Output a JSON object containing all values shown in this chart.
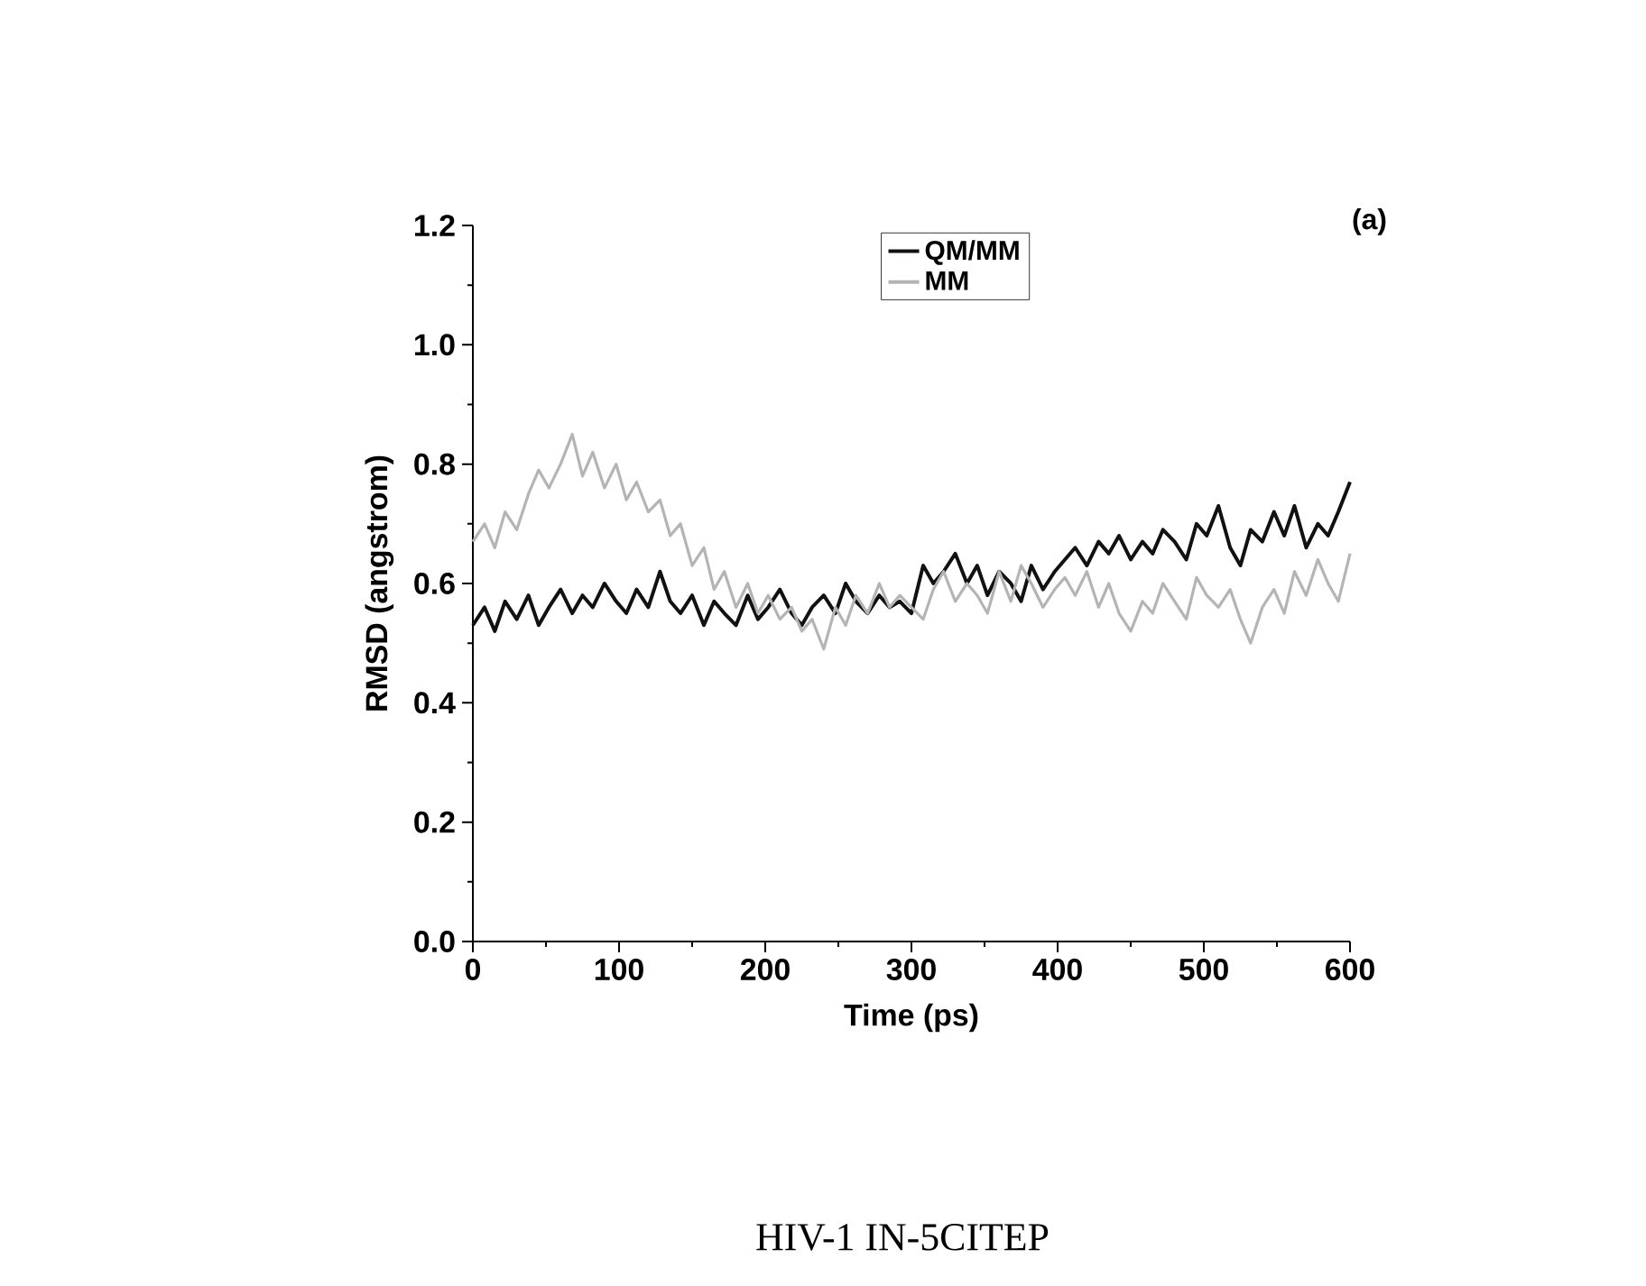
{
  "chart_data": {
    "type": "line",
    "xlabel": "Time (ps)",
    "ylabel": "RMSD (angstrom)",
    "xlim": [
      0,
      600
    ],
    "ylim": [
      0,
      1.2
    ],
    "xticks": [
      0,
      100,
      200,
      300,
      400,
      500,
      600
    ],
    "yticks": [
      {
        "value": 0,
        "label": "0.0"
      },
      {
        "value": 0.2,
        "label": "0.2"
      },
      {
        "value": 0.4,
        "label": "0.4"
      },
      {
        "value": 0.6,
        "label": "0.6"
      },
      {
        "value": 0.8,
        "label": "0.8"
      },
      {
        "value": 1.0,
        "label": "1.0"
      },
      {
        "value": 1.2,
        "label": "1.2"
      }
    ],
    "legend": "top",
    "grid": false,
    "marker": "none",
    "line_style": "solid",
    "annotations": [
      "(a)",
      "HIV-1 IN-5CITEP"
    ],
    "x": [
      0,
      8,
      15,
      22,
      30,
      38,
      45,
      52,
      60,
      68,
      75,
      82,
      90,
      98,
      105,
      112,
      120,
      128,
      135,
      142,
      150,
      158,
      165,
      172,
      180,
      188,
      195,
      202,
      210,
      218,
      225,
      232,
      240,
      248,
      255,
      262,
      270,
      278,
      285,
      292,
      300,
      308,
      315,
      322,
      330,
      338,
      345,
      352,
      360,
      368,
      375,
      382,
      390,
      398,
      405,
      412,
      420,
      428,
      435,
      442,
      450,
      458,
      465,
      472,
      480,
      488,
      495,
      502,
      510,
      518,
      525,
      532,
      540,
      548,
      555,
      562,
      570,
      578,
      585,
      592,
      600
    ],
    "series": [
      {
        "name": "QM/MM",
        "color": "#111111",
        "values": [
          0.53,
          0.56,
          0.52,
          0.57,
          0.54,
          0.58,
          0.53,
          0.56,
          0.59,
          0.55,
          0.58,
          0.56,
          0.6,
          0.57,
          0.55,
          0.59,
          0.56,
          0.62,
          0.57,
          0.55,
          0.58,
          0.53,
          0.57,
          0.55,
          0.53,
          0.58,
          0.54,
          0.56,
          0.59,
          0.55,
          0.53,
          0.56,
          0.58,
          0.55,
          0.6,
          0.57,
          0.55,
          0.58,
          0.56,
          0.57,
          0.55,
          0.63,
          0.6,
          0.62,
          0.65,
          0.6,
          0.63,
          0.58,
          0.62,
          0.6,
          0.57,
          0.63,
          0.59,
          0.62,
          0.64,
          0.66,
          0.63,
          0.67,
          0.65,
          0.68,
          0.64,
          0.67,
          0.65,
          0.69,
          0.67,
          0.64,
          0.7,
          0.68,
          0.73,
          0.66,
          0.63,
          0.69,
          0.67,
          0.72,
          0.68,
          0.73,
          0.66,
          0.7,
          0.68,
          0.72,
          0.77
        ]
      },
      {
        "name": "MM",
        "color": "#b4b4b4",
        "values": [
          0.67,
          0.7,
          0.66,
          0.72,
          0.69,
          0.75,
          0.79,
          0.76,
          0.8,
          0.85,
          0.78,
          0.82,
          0.76,
          0.8,
          0.74,
          0.77,
          0.72,
          0.74,
          0.68,
          0.7,
          0.63,
          0.66,
          0.59,
          0.62,
          0.56,
          0.6,
          0.55,
          0.58,
          0.54,
          0.56,
          0.52,
          0.54,
          0.49,
          0.56,
          0.53,
          0.58,
          0.55,
          0.6,
          0.56,
          0.58,
          0.56,
          0.54,
          0.59,
          0.62,
          0.57,
          0.6,
          0.58,
          0.55,
          0.62,
          0.57,
          0.63,
          0.6,
          0.56,
          0.59,
          0.61,
          0.58,
          0.62,
          0.56,
          0.6,
          0.55,
          0.52,
          0.57,
          0.55,
          0.6,
          0.57,
          0.54,
          0.61,
          0.58,
          0.56,
          0.59,
          0.54,
          0.5,
          0.56,
          0.59,
          0.55,
          0.62,
          0.58,
          0.64,
          0.6,
          0.57,
          0.65
        ]
      }
    ]
  }
}
